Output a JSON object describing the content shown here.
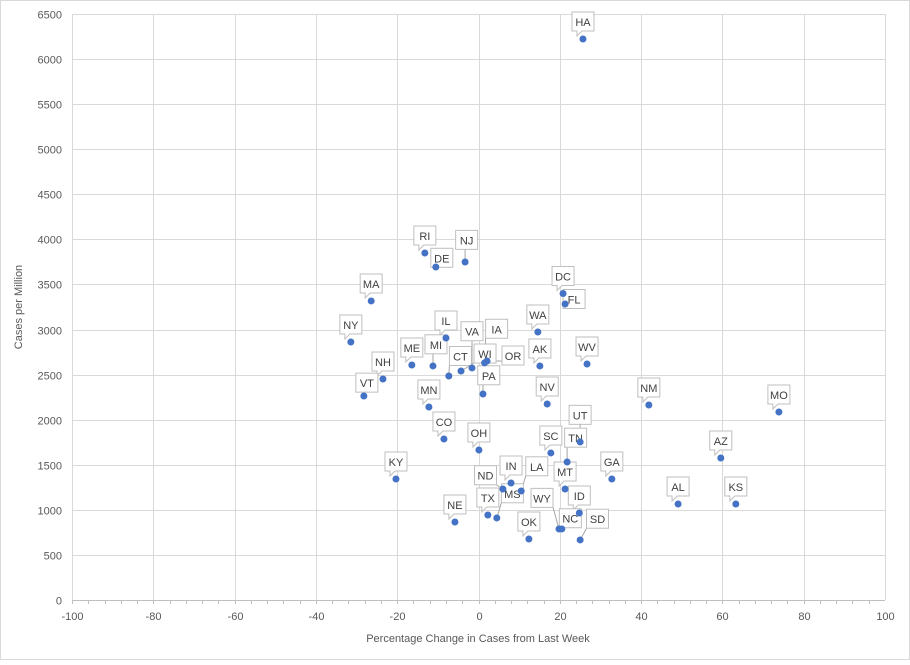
{
  "chart_data": {
    "type": "scatter",
    "title": "",
    "xlabel": "Percentage Change  in Cases from Last Week",
    "ylabel": "Cases per Million",
    "xlim": [
      -100,
      100
    ],
    "ylim": [
      0,
      6500
    ],
    "xticks": [
      -100,
      -80,
      -60,
      -40,
      -20,
      0,
      20,
      40,
      60,
      80,
      100
    ],
    "yticks": [
      0,
      500,
      1000,
      1500,
      2000,
      2500,
      3000,
      3500,
      4000,
      4500,
      5000,
      5500,
      6000,
      6500
    ],
    "grid": true,
    "legend": "none",
    "colors": {
      "marker": "#4472c4",
      "grid": "#d9d9d9",
      "axis_text": "#595959",
      "label_border": "#bfbfbf"
    },
    "points": [
      {
        "label": "HA",
        "x": 25.7,
        "y": 6223
      },
      {
        "label": "RI",
        "x": -13.2,
        "y": 3849
      },
      {
        "label": "DE",
        "x": -10.5,
        "y": 3694
      },
      {
        "label": "NJ",
        "x": -3.3,
        "y": 3749
      },
      {
        "label": "MA",
        "x": -26.4,
        "y": 3317
      },
      {
        "label": "NY",
        "x": -31.4,
        "y": 2862
      },
      {
        "label": "IL",
        "x": -8.0,
        "y": 2906
      },
      {
        "label": "ME",
        "x": -16.4,
        "y": 2607
      },
      {
        "label": "MI",
        "x": -11.2,
        "y": 2596
      },
      {
        "label": "CT",
        "x": -7.3,
        "y": 2485
      },
      {
        "label": "WI",
        "x": -4.3,
        "y": 2540
      },
      {
        "label": "VA",
        "x": -1.6,
        "y": 2574
      },
      {
        "label": "IA",
        "x": 1.5,
        "y": 2630
      },
      {
        "label": "OR",
        "x": 2.1,
        "y": 2651
      },
      {
        "label": "PA",
        "x": 1.1,
        "y": 2285
      },
      {
        "label": "NH",
        "x": -23.5,
        "y": 2451
      },
      {
        "label": "VT",
        "x": -28.2,
        "y": 2263
      },
      {
        "label": "MN",
        "x": -12.2,
        "y": 2141
      },
      {
        "label": "CO",
        "x": -8.5,
        "y": 1786
      },
      {
        "label": "OH",
        "x": 0.1,
        "y": 1664
      },
      {
        "label": "KY",
        "x": -20.3,
        "y": 1342
      },
      {
        "label": "NE",
        "x": -5.8,
        "y": 865
      },
      {
        "label": "IN",
        "x": 8.0,
        "y": 1298
      },
      {
        "label": "ND",
        "x": 6.0,
        "y": 1231
      },
      {
        "label": "LA",
        "x": 10.5,
        "y": 1209
      },
      {
        "label": "TX",
        "x": 2.3,
        "y": 943
      },
      {
        "label": "MS",
        "x": 4.5,
        "y": 910
      },
      {
        "label": "OK",
        "x": 12.4,
        "y": 677
      },
      {
        "label": "SC",
        "x": 17.8,
        "y": 1631
      },
      {
        "label": "TN",
        "x": 21.8,
        "y": 1531
      },
      {
        "label": "UT",
        "x": 25.0,
        "y": 1753
      },
      {
        "label": "MT",
        "x": 21.3,
        "y": 1231
      },
      {
        "label": "ID",
        "x": 24.8,
        "y": 965
      },
      {
        "label": "NC",
        "x": 20.5,
        "y": 788
      },
      {
        "label": "WY",
        "x": 19.8,
        "y": 788
      },
      {
        "label": "SD",
        "x": 25.0,
        "y": 666
      },
      {
        "label": "DC",
        "x": 20.8,
        "y": 3400
      },
      {
        "label": "FL",
        "x": 21.3,
        "y": 3283
      },
      {
        "label": "WA",
        "x": 14.6,
        "y": 2973
      },
      {
        "label": "AK",
        "x": 15.1,
        "y": 2596
      },
      {
        "label": "NV",
        "x": 16.9,
        "y": 2174
      },
      {
        "label": "WV",
        "x": 26.7,
        "y": 2618
      },
      {
        "label": "NM",
        "x": 41.9,
        "y": 2163
      },
      {
        "label": "MO",
        "x": 73.9,
        "y": 2085
      },
      {
        "label": "AZ",
        "x": 59.6,
        "y": 1575
      },
      {
        "label": "GA",
        "x": 32.8,
        "y": 1342
      },
      {
        "label": "AL",
        "x": 49.1,
        "y": 1065
      },
      {
        "label": "KS",
        "x": 63.3,
        "y": 1065
      }
    ]
  }
}
